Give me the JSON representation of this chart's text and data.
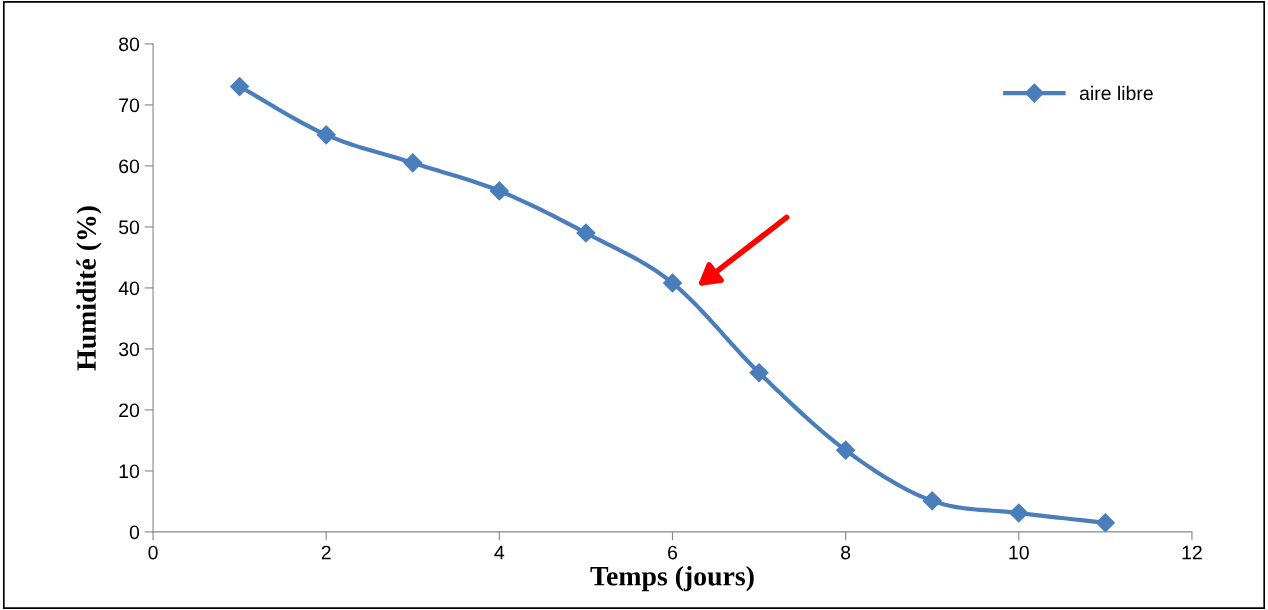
{
  "chart_data": {
    "type": "line",
    "xlabel": "Temps (jours)",
    "ylabel": "Humidité (%)",
    "x": [
      1,
      2,
      3,
      4,
      5,
      6,
      7,
      8,
      9,
      10,
      11
    ],
    "series": [
      {
        "name": "aire libre",
        "color": "#4a7ebb",
        "values": [
          73,
          65.1,
          60.5,
          55.9,
          49,
          40.8,
          26.1,
          13.4,
          5.1,
          3.1,
          1.5
        ]
      }
    ],
    "xlim": [
      0,
      12
    ],
    "xticks": [
      0,
      2,
      4,
      6,
      8,
      10,
      12
    ],
    "ylim": [
      0,
      80
    ],
    "yticks": [
      0,
      10,
      20,
      30,
      40,
      50,
      60,
      70,
      80
    ],
    "grid": false,
    "legend": "top right",
    "marker": "diamond",
    "line_style": "solid"
  }
}
